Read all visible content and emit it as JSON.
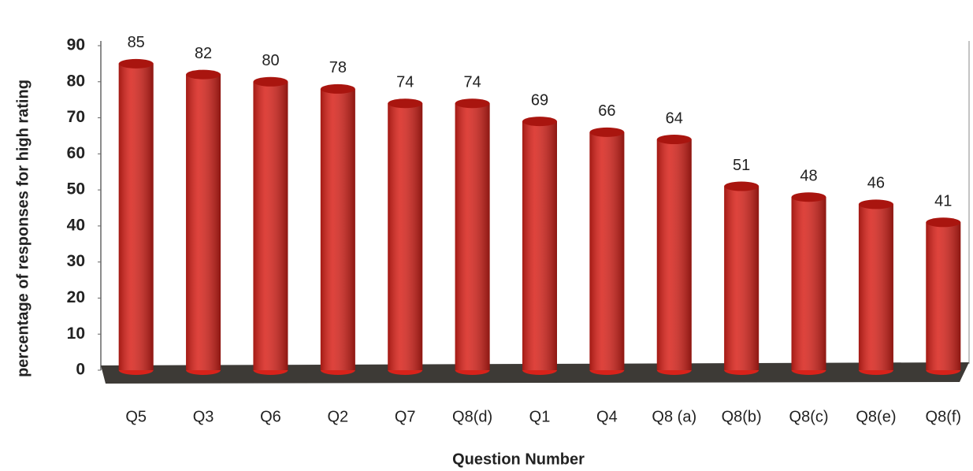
{
  "chart_data": {
    "type": "bar",
    "xlabel": "Question Number",
    "ylabel": "percentage of responses for high rating",
    "categories": [
      "Q5",
      "Q3",
      "Q6",
      "Q2",
      "Q7",
      "Q8(d)",
      "Q1",
      "Q4",
      "Q8 (a)",
      "Q8(b)",
      "Q8(c)",
      "Q8(e)",
      "Q8(f)"
    ],
    "values": [
      85,
      82,
      80,
      78,
      74,
      74,
      69,
      66,
      64,
      51,
      48,
      46,
      41
    ],
    "color": "#d8221a",
    "ylim": [
      0,
      90
    ],
    "yticks": [
      0,
      10,
      20,
      30,
      40,
      50,
      60,
      70,
      80,
      90
    ],
    "grid": false
  }
}
